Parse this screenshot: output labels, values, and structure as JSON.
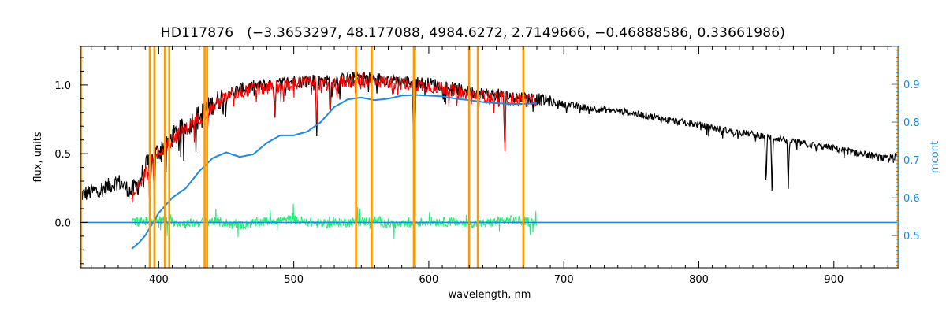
{
  "chart_data": {
    "type": "line",
    "title": "HD117876   (−3.3653297, 48.177088, 4984.6272, 2.7149666, −0.46888586, 0.33661986)",
    "xlabel": "wavelength, nm",
    "ylabel": "flux, units",
    "y2label": "mcont",
    "xlim": [
      342,
      948
    ],
    "ylim": [
      -0.33,
      1.28
    ],
    "y2lim": [
      0.415,
      1.0
    ],
    "x_ticks": [
      400,
      500,
      600,
      700,
      800,
      900
    ],
    "y_ticks": [
      0.0,
      0.5,
      1.0
    ],
    "y2_ticks": [
      0.5,
      0.6,
      0.7,
      0.8,
      0.9
    ],
    "grid": false,
    "colors": {
      "observed": "#000000",
      "model": "#ff0000",
      "residual": "#22ee77",
      "continuum": "#1e88e5",
      "marker_lines": "#ff9900",
      "right_axis": "#1e88e5"
    },
    "marker_lines_x": [
      342.5,
      393.4,
      396.8,
      404.6,
      407.8,
      434.0,
      435.8,
      546.1,
      557.7,
      588.9,
      589.6,
      629.9,
      636.3,
      670.0,
      947.5
    ],
    "series": [
      {
        "role": "observed",
        "x": [
          342,
          350,
          360,
          370,
          380,
          385,
          390,
          400,
          410,
          420,
          430,
          440,
          450,
          460,
          470,
          480,
          490,
          500,
          510,
          520,
          530,
          540,
          550,
          560,
          570,
          580,
          590,
          600,
          610,
          620,
          630,
          640,
          650,
          660,
          670,
          680,
          700,
          720,
          740,
          760,
          780,
          800,
          820,
          840,
          860,
          880,
          900,
          920,
          940,
          948
        ],
        "y": [
          0.2,
          0.22,
          0.25,
          0.3,
          0.22,
          0.28,
          0.4,
          0.52,
          0.62,
          0.7,
          0.78,
          0.86,
          0.93,
          0.97,
          0.99,
          1.0,
          1.01,
          1.03,
          1.04,
          1.03,
          1.03,
          1.05,
          1.06,
          1.05,
          1.04,
          1.03,
          1.02,
          1.01,
          1.0,
          0.97,
          0.95,
          0.94,
          0.93,
          0.92,
          0.91,
          0.9,
          0.86,
          0.83,
          0.81,
          0.78,
          0.74,
          0.71,
          0.67,
          0.64,
          0.61,
          0.57,
          0.54,
          0.5,
          0.46,
          0.49
        ]
      },
      {
        "role": "model",
        "x": [
          380,
          385,
          390,
          400,
          410,
          420,
          430,
          440,
          450,
          460,
          470,
          480,
          490,
          500,
          510,
          520,
          530,
          540,
          550,
          560,
          570,
          580,
          590,
          600,
          610,
          620,
          630,
          640,
          650,
          660,
          670,
          680
        ],
        "y": [
          0.16,
          0.26,
          0.38,
          0.5,
          0.6,
          0.68,
          0.76,
          0.84,
          0.91,
          0.95,
          0.97,
          0.98,
          0.99,
          1.01,
          1.02,
          1.01,
          1.01,
          1.03,
          1.04,
          1.03,
          1.02,
          1.01,
          1.0,
          0.99,
          0.98,
          0.95,
          0.93,
          0.92,
          0.91,
          0.9,
          0.89,
          0.88
        ]
      },
      {
        "role": "residual",
        "x": [
          380,
          400,
          420,
          440,
          460,
          480,
          500,
          520,
          540,
          560,
          580,
          600,
          620,
          640,
          660,
          680
        ],
        "y": [
          0.0,
          0.02,
          -0.01,
          0.01,
          -0.02,
          0.01,
          0.02,
          -0.01,
          0.0,
          0.01,
          -0.02,
          0.01,
          0.0,
          -0.01,
          0.02,
          0.0
        ]
      },
      {
        "role": "continuum",
        "axis": "right",
        "x": [
          380,
          385,
          390,
          395,
          400,
          410,
          420,
          430,
          440,
          450,
          460,
          470,
          480,
          490,
          500,
          510,
          520,
          530,
          540,
          550,
          560,
          570,
          580,
          590,
          600,
          610,
          620,
          630,
          640,
          650,
          660,
          670,
          680
        ],
        "y": [
          0.465,
          0.48,
          0.5,
          0.53,
          0.56,
          0.6,
          0.625,
          0.67,
          0.705,
          0.72,
          0.708,
          0.715,
          0.745,
          0.765,
          0.765,
          0.775,
          0.8,
          0.84,
          0.86,
          0.865,
          0.858,
          0.862,
          0.87,
          0.872,
          0.87,
          0.868,
          0.862,
          0.858,
          0.853,
          0.85,
          0.848,
          0.848,
          0.85
        ]
      },
      {
        "role": "continuum-flat",
        "x": [
          342,
          380,
          680,
          948
        ],
        "y": [
          0.0,
          0.0,
          0.0,
          0.0
        ]
      }
    ],
    "absorption_lines": [
      {
        "x": 393.4,
        "depth": 0.35
      },
      {
        "x": 396.8,
        "depth": 0.3
      },
      {
        "x": 486.1,
        "depth": 0.3
      },
      {
        "x": 517.0,
        "depth": 0.42
      },
      {
        "x": 527.0,
        "depth": 0.28
      },
      {
        "x": 588.9,
        "depth": 0.55
      },
      {
        "x": 589.6,
        "depth": 0.5
      },
      {
        "x": 656.3,
        "depth": 0.45
      },
      {
        "x": 849.8,
        "depth": 0.4
      },
      {
        "x": 854.2,
        "depth": 0.45
      },
      {
        "x": 866.2,
        "depth": 0.4
      }
    ]
  }
}
